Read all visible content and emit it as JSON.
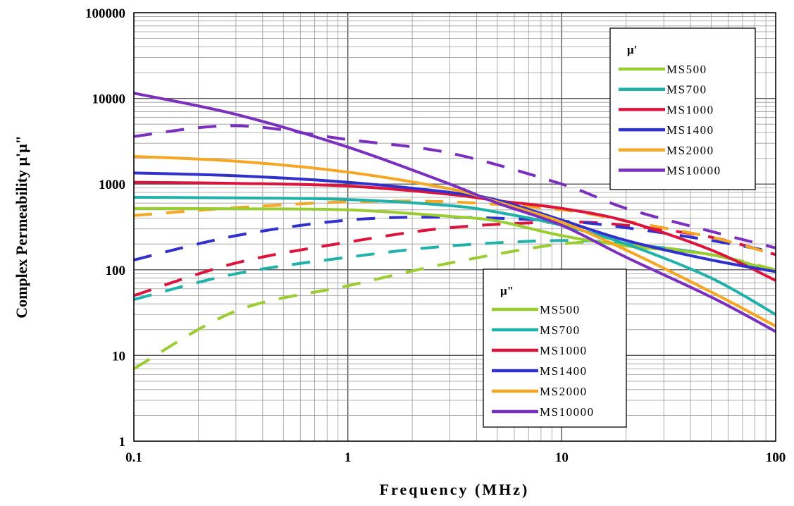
{
  "chart_data": {
    "type": "line",
    "title": "",
    "xlabel": "Frequency (MHz)",
    "ylabel": "Complex Permeability μ'μ\"",
    "x_scale": "log",
    "y_scale": "log",
    "xlim": [
      0.1,
      100
    ],
    "ylim": [
      1,
      100000
    ],
    "x_ticks": [
      0.1,
      1,
      10,
      100
    ],
    "x_tick_labels": [
      "0.1",
      "1",
      "10",
      "100"
    ],
    "y_ticks": [
      1,
      10,
      100,
      1000,
      10000,
      100000
    ],
    "y_tick_labels": [
      "1",
      "10",
      "100",
      "1000",
      "10000",
      "100000"
    ],
    "grid": true,
    "legends": [
      {
        "title": "μ'",
        "placement": "top-right",
        "line_style": "solid",
        "entries": [
          "MS500",
          "MS700",
          "MS1000",
          "MS1400",
          "MS2000",
          "MS10000"
        ]
      },
      {
        "title": "μ\"",
        "placement": "center-bottom",
        "line_style": "solid",
        "entries": [
          "MS500",
          "MS700",
          "MS1000",
          "MS1400",
          "MS2000",
          "MS10000"
        ]
      }
    ],
    "colors": {
      "MS500": "#9ACD32",
      "MS700": "#20B2AA",
      "MS1000": "#DC143C",
      "MS1400": "#3030CC",
      "MS2000": "#F5A623",
      "MS10000": "#7B2FBE"
    },
    "series": [
      {
        "name": "MS500",
        "quantity": "μ'",
        "style": "solid",
        "x": [
          0.1,
          0.3,
          1,
          3,
          5,
          10,
          20,
          50,
          100
        ],
        "y": [
          520,
          515,
          500,
          420,
          370,
          250,
          190,
          150,
          95
        ]
      },
      {
        "name": "MS700",
        "quantity": "μ'",
        "style": "solid",
        "x": [
          0.1,
          0.3,
          1,
          3,
          5,
          10,
          20,
          50,
          100
        ],
        "y": [
          700,
          690,
          660,
          560,
          470,
          330,
          200,
          80,
          30
        ]
      },
      {
        "name": "MS1000",
        "quantity": "μ'",
        "style": "solid",
        "x": [
          0.1,
          0.3,
          1,
          3,
          5,
          10,
          20,
          50,
          100
        ],
        "y": [
          1050,
          1020,
          950,
          760,
          640,
          520,
          370,
          170,
          75
        ]
      },
      {
        "name": "MS1400",
        "quantity": "μ'",
        "style": "solid",
        "x": [
          0.1,
          0.3,
          1,
          3,
          5,
          10,
          20,
          50,
          100
        ],
        "y": [
          1350,
          1250,
          1050,
          800,
          650,
          380,
          220,
          130,
          95
        ]
      },
      {
        "name": "MS2000",
        "quantity": "μ'",
        "style": "solid",
        "x": [
          0.1,
          0.3,
          1,
          3,
          5,
          10,
          20,
          50,
          100
        ],
        "y": [
          2100,
          1850,
          1380,
          880,
          620,
          360,
          170,
          55,
          22
        ]
      },
      {
        "name": "MS10000",
        "quantity": "μ'",
        "style": "solid",
        "x": [
          0.1,
          0.3,
          1,
          3,
          5,
          10,
          20,
          50,
          100
        ],
        "y": [
          11500,
          6500,
          2700,
          1000,
          600,
          330,
          140,
          48,
          19
        ]
      },
      {
        "name": "MS500",
        "quantity": "μ\"",
        "style": "dashed",
        "x": [
          0.1,
          0.3,
          1,
          3,
          10,
          20,
          50,
          100
        ],
        "y": [
          7,
          33,
          65,
          120,
          200,
          200,
          150,
          100
        ]
      },
      {
        "name": "MS700",
        "quantity": "μ\"",
        "style": "dashed",
        "x": [
          0.1,
          0.3,
          1,
          3,
          10,
          20,
          50,
          100
        ],
        "y": [
          45,
          90,
          140,
          190,
          220,
          200,
          150,
          95
        ]
      },
      {
        "name": "MS1000",
        "quantity": "μ\"",
        "style": "dashed",
        "x": [
          0.1,
          0.3,
          1,
          3,
          10,
          20,
          50,
          100
        ],
        "y": [
          50,
          120,
          210,
          310,
          360,
          330,
          240,
          150
        ]
      },
      {
        "name": "MS1400",
        "quantity": "μ\"",
        "style": "dashed",
        "x": [
          0.1,
          0.3,
          1,
          3,
          10,
          20,
          50,
          100
        ],
        "y": [
          130,
          250,
          380,
          410,
          370,
          310,
          220,
          160
        ]
      },
      {
        "name": "MS2000",
        "quantity": "μ\"",
        "style": "dashed",
        "x": [
          0.1,
          0.3,
          1,
          3,
          10,
          20,
          50,
          100
        ],
        "y": [
          430,
          530,
          620,
          620,
          500,
          370,
          240,
          150
        ]
      },
      {
        "name": "MS10000",
        "quantity": "μ\"",
        "style": "dashed",
        "x": [
          0.1,
          0.3,
          1,
          3,
          10,
          20,
          50,
          100
        ],
        "y": [
          3600,
          4800,
          3300,
          2300,
          1000,
          520,
          280,
          180
        ]
      }
    ]
  }
}
